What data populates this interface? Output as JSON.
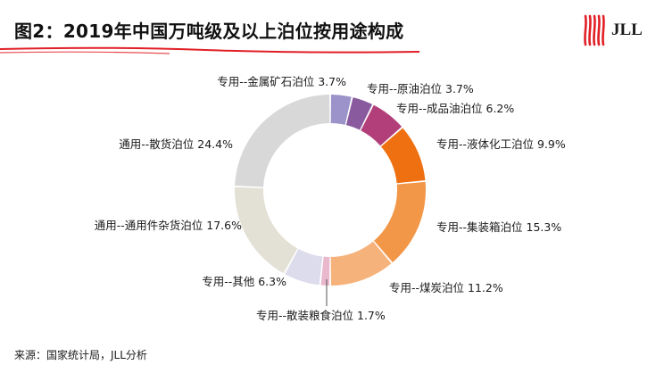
{
  "header": {
    "title": "图2：2019年中国万吨级及以上泊位按用途构成",
    "logo_text": "JLL",
    "logo_color": "#e11f26"
  },
  "chart_data": {
    "type": "pie",
    "style": "donut",
    "title": "图2：2019年中国万吨级及以上泊位按用途构成",
    "unit": "%",
    "slices": [
      {
        "label": "专用--金属矿石泊位 3.7%",
        "category": "专用--金属矿石泊位",
        "value": 3.7,
        "color": "#9b93c9"
      },
      {
        "label": "专用--原油泊位 3.7%",
        "category": "专用--原油泊位",
        "value": 3.7,
        "color": "#8a5a9e"
      },
      {
        "label": "专用--成品油泊位 6.2%",
        "category": "专用--成品油泊位",
        "value": 6.2,
        "color": "#b23f7a"
      },
      {
        "label": "专用--液体化工泊位 9.9%",
        "category": "专用--液体化工泊位",
        "value": 9.9,
        "color": "#ee7011"
      },
      {
        "label": "专用--集装箱泊位 15.3%",
        "category": "专用--集装箱泊位",
        "value": 15.3,
        "color": "#f29648"
      },
      {
        "label": "专用--煤炭泊位 11.2%",
        "category": "专用--煤炭泊位",
        "value": 11.2,
        "color": "#f6b27b"
      },
      {
        "label": "专用--散装粮食泊位 1.7%",
        "category": "专用--散装粮食泊位",
        "value": 1.7,
        "color": "#e9b8cc"
      },
      {
        "label": "专用--其他 6.3%",
        "category": "专用--其他",
        "value": 6.3,
        "color": "#dcdcec"
      },
      {
        "label": "通用--通用件杂货泊位 17.6%",
        "category": "通用--通用件杂货泊位",
        "value": 17.6,
        "color": "#e3e0d6"
      },
      {
        "label": "通用--散货泊位 24.4%",
        "category": "通用--散货泊位",
        "value": 24.4,
        "color": "#d8d8d8"
      }
    ]
  },
  "footer": {
    "source": "来源：国家统计局，JLL分析"
  }
}
